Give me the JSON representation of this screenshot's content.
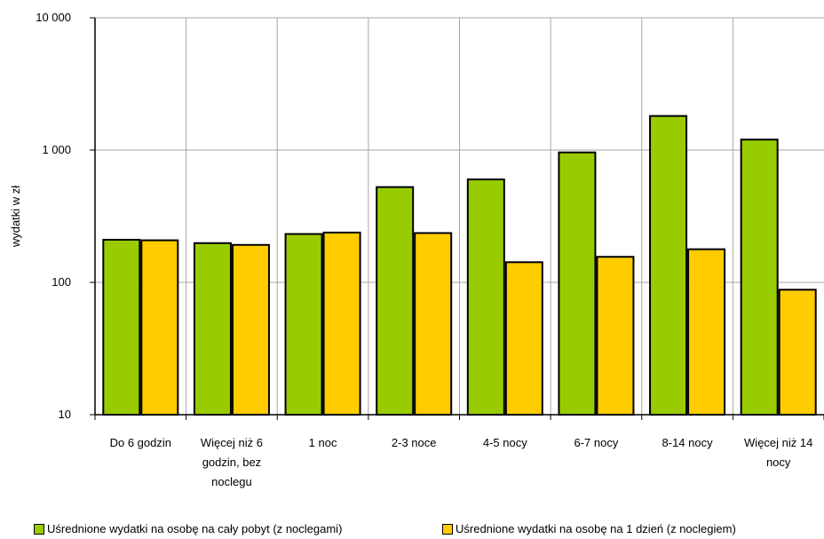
{
  "chart_data": {
    "type": "bar",
    "ylabel": "wydatki w zł",
    "yscale": "log",
    "ylim": [
      10,
      10000
    ],
    "yticks": [
      {
        "value": 10,
        "label": "10"
      },
      {
        "value": 100,
        "label": "100"
      },
      {
        "value": 1000,
        "label": "1 000"
      },
      {
        "value": 10000,
        "label": "10 000"
      }
    ],
    "categories": [
      [
        "Do 6 godzin"
      ],
      [
        "Więcej niż 6",
        "godzin, bez",
        "noclegu"
      ],
      [
        "1 noc"
      ],
      [
        "2-3 noce"
      ],
      [
        "4-5 nocy"
      ],
      [
        "6-7 nocy"
      ],
      [
        "8-14 nocy"
      ],
      [
        "Więcej niż 14",
        "nocy"
      ]
    ],
    "series": [
      {
        "name": "Uśrednione wydatki na osobę na cały pobyt (z noclegami)",
        "color": "#99cc00",
        "values": [
          210,
          198,
          232,
          525,
          600,
          960,
          1810,
          1200
        ]
      },
      {
        "name": "Uśrednione wydatki na osobę na 1 dzień (z noclegiem)",
        "color": "#ffcc00",
        "values": [
          208,
          192,
          238,
          236,
          142,
          156,
          178,
          88
        ]
      }
    ],
    "grid": true,
    "legend": "bottom"
  }
}
